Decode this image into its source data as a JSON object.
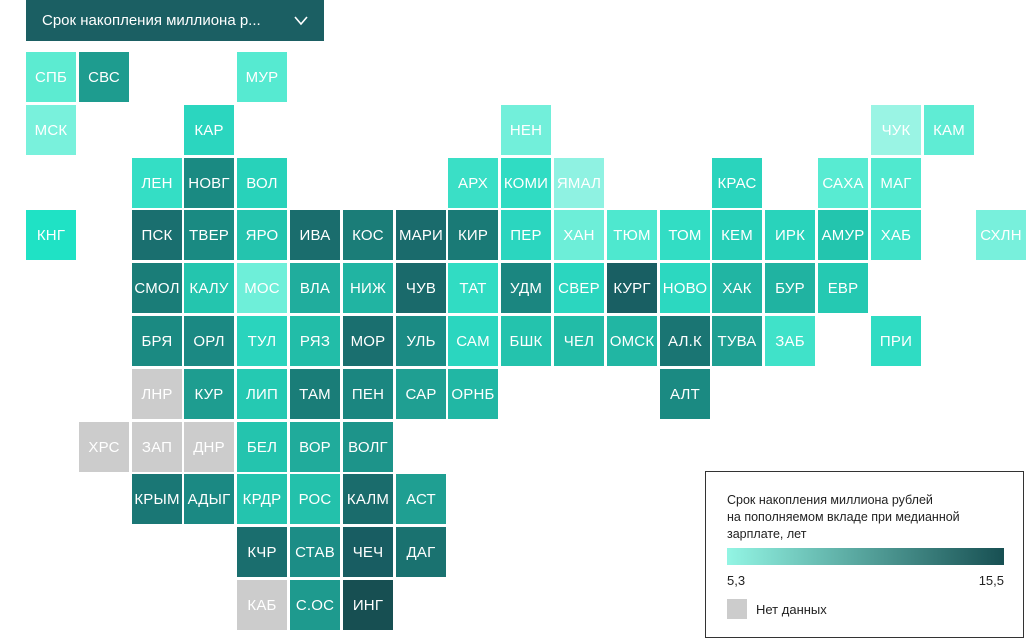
{
  "selector": {
    "label": "Срок накопления миллиона р..."
  },
  "legend": {
    "title_lines": [
      "Срок накопления миллиона рублей",
      "на пополняемом вкладе при медианной",
      "зарплате, лет"
    ],
    "min": "5,3",
    "max": "15,5",
    "no_data_label": "Нет данных",
    "color_min": "#93f5e4",
    "color_max": "#174f52",
    "no_data_color": "#cccccc"
  },
  "regions": [
    {
      "label": "СПБ",
      "col": 0,
      "row": 0,
      "color": "#5cebd1"
    },
    {
      "label": "СВС",
      "col": 1,
      "row": 0,
      "color": "#1e9c8f"
    },
    {
      "label": "МУР",
      "col": 4,
      "row": 0,
      "color": "#56ead1"
    },
    {
      "label": "МСК",
      "col": 0,
      "row": 1,
      "color": "#79f1dc"
    },
    {
      "label": "КАР",
      "col": 3,
      "row": 1,
      "color": "#2bd6bf"
    },
    {
      "label": "НЕН",
      "col": 9,
      "row": 1,
      "color": "#72efda"
    },
    {
      "label": "ЧУК",
      "col": 16,
      "row": 1,
      "color": "#9af4e4"
    },
    {
      "label": "КАМ",
      "col": 17,
      "row": 1,
      "color": "#5fecd4"
    },
    {
      "label": "ЛЕН",
      "col": 2,
      "row": 2,
      "color": "#34dec5"
    },
    {
      "label": "НОВГ",
      "col": 3,
      "row": 2,
      "color": "#1a8a82"
    },
    {
      "label": "ВОЛ",
      "col": 4,
      "row": 2,
      "color": "#28d2ba"
    },
    {
      "label": "АРХ",
      "col": 8,
      "row": 2,
      "color": "#3adfc6"
    },
    {
      "label": "КОМИ",
      "col": 9,
      "row": 2,
      "color": "#30dcc3"
    },
    {
      "label": "ЯМАЛ",
      "col": 10,
      "row": 2,
      "color": "#8ff2e2"
    },
    {
      "label": "КРАС",
      "col": 13,
      "row": 2,
      "color": "#2ad4bd"
    },
    {
      "label": "САХА",
      "col": 15,
      "row": 2,
      "color": "#58ebd2"
    },
    {
      "label": "МАГ",
      "col": 16,
      "row": 2,
      "color": "#50e9cf"
    },
    {
      "label": "КНГ",
      "col": 0,
      "row": 3,
      "color": "#1fe2c5"
    },
    {
      "label": "ПСК",
      "col": 2,
      "row": 3,
      "color": "#1a6f6f"
    },
    {
      "label": "ТВЕР",
      "col": 3,
      "row": 3,
      "color": "#1a8a82"
    },
    {
      "label": "ЯРО",
      "col": 4,
      "row": 3,
      "color": "#24c4ae"
    },
    {
      "label": "ИВА",
      "col": 5,
      "row": 3,
      "color": "#1a6d6d"
    },
    {
      "label": "КОС",
      "col": 6,
      "row": 3,
      "color": "#1b7d78"
    },
    {
      "label": "МАРИ",
      "col": 7,
      "row": 3,
      "color": "#1a6b6c"
    },
    {
      "label": "КИР",
      "col": 8,
      "row": 3,
      "color": "#1a7a76"
    },
    {
      "label": "ПЕР",
      "col": 9,
      "row": 3,
      "color": "#2bd6bf"
    },
    {
      "label": "ХАН",
      "col": 10,
      "row": 3,
      "color": "#6deed8"
    },
    {
      "label": "ТЮМ",
      "col": 11,
      "row": 3,
      "color": "#4ee8cf"
    },
    {
      "label": "ТОМ",
      "col": 12,
      "row": 3,
      "color": "#32ddc4"
    },
    {
      "label": "КЕМ",
      "col": 13,
      "row": 3,
      "color": "#27cfb8"
    },
    {
      "label": "ИРК",
      "col": 14,
      "row": 3,
      "color": "#29d3bb"
    },
    {
      "label": "АМУР",
      "col": 15,
      "row": 3,
      "color": "#23c5ae"
    },
    {
      "label": "ХАБ",
      "col": 16,
      "row": 3,
      "color": "#3ee1c8"
    },
    {
      "label": "СХЛН",
      "col": 18,
      "row": 3,
      "color": "#78f0dc"
    },
    {
      "label": "СМОЛ",
      "col": 2,
      "row": 4,
      "color": "#1a7d78"
    },
    {
      "label": "КАЛУ",
      "col": 3,
      "row": 4,
      "color": "#24c5ae"
    },
    {
      "label": "МОС",
      "col": 4,
      "row": 4,
      "color": "#6eefd9"
    },
    {
      "label": "ВЛА",
      "col": 5,
      "row": 4,
      "color": "#20ad9d"
    },
    {
      "label": "НИЖ",
      "col": 6,
      "row": 4,
      "color": "#21b4a2"
    },
    {
      "label": "ЧУВ",
      "col": 7,
      "row": 4,
      "color": "#1a6a6b"
    },
    {
      "label": "ТАТ",
      "col": 8,
      "row": 4,
      "color": "#31dcc3"
    },
    {
      "label": "УДМ",
      "col": 9,
      "row": 4,
      "color": "#1b8680"
    },
    {
      "label": "СВЕР",
      "col": 10,
      "row": 4,
      "color": "#2bd6bf"
    },
    {
      "label": "КУРГ",
      "col": 11,
      "row": 4,
      "color": "#195f63"
    },
    {
      "label": "НОВО",
      "col": 12,
      "row": 4,
      "color": "#2cd8c0"
    },
    {
      "label": "ХАК",
      "col": 13,
      "row": 4,
      "color": "#21b5a3"
    },
    {
      "label": "БУР",
      "col": 14,
      "row": 4,
      "color": "#20b3a1"
    },
    {
      "label": "ЕВР",
      "col": 15,
      "row": 4,
      "color": "#25c9b2"
    },
    {
      "label": "БРЯ",
      "col": 2,
      "row": 5,
      "color": "#1b8a82"
    },
    {
      "label": "ОРЛ",
      "col": 3,
      "row": 5,
      "color": "#1b8983"
    },
    {
      "label": "ТУЛ",
      "col": 4,
      "row": 5,
      "color": "#2ad4bd"
    },
    {
      "label": "РЯЗ",
      "col": 5,
      "row": 5,
      "color": "#22bda8"
    },
    {
      "label": "МОР",
      "col": 6,
      "row": 5,
      "color": "#1a6f6f"
    },
    {
      "label": "УЛЬ",
      "col": 7,
      "row": 5,
      "color": "#1b8b84"
    },
    {
      "label": "САМ",
      "col": 8,
      "row": 5,
      "color": "#2bd6bf"
    },
    {
      "label": "БШК",
      "col": 9,
      "row": 5,
      "color": "#24c3ad"
    },
    {
      "label": "ЧЕЛ",
      "col": 10,
      "row": 5,
      "color": "#22bca7"
    },
    {
      "label": "ОМСК",
      "col": 11,
      "row": 5,
      "color": "#21b6a3"
    },
    {
      "label": "АЛ.К",
      "col": 12,
      "row": 5,
      "color": "#1a7573"
    },
    {
      "label": "ТУВА",
      "col": 13,
      "row": 5,
      "color": "#1f9f92"
    },
    {
      "label": "ЗАБ",
      "col": 14,
      "row": 5,
      "color": "#40e2c9"
    },
    {
      "label": "ПРИ",
      "col": 16,
      "row": 5,
      "color": "#2fdcc3"
    },
    {
      "label": "ЛНР",
      "col": 2,
      "row": 6,
      "color": "#cccccc"
    },
    {
      "label": "КУР",
      "col": 3,
      "row": 6,
      "color": "#1e9d90"
    },
    {
      "label": "ЛИП",
      "col": 4,
      "row": 6,
      "color": "#25c9b2"
    },
    {
      "label": "ТАМ",
      "col": 5,
      "row": 6,
      "color": "#1a7d78"
    },
    {
      "label": "ПЕН",
      "col": 6,
      "row": 6,
      "color": "#1b8680"
    },
    {
      "label": "САР",
      "col": 7,
      "row": 6,
      "color": "#1f9f92"
    },
    {
      "label": "ОРНБ",
      "col": 8,
      "row": 6,
      "color": "#21b7a4"
    },
    {
      "label": "АЛТ",
      "col": 12,
      "row": 6,
      "color": "#1b8a82"
    },
    {
      "label": "ХРС",
      "col": 1,
      "row": 7,
      "color": "#cccccc"
    },
    {
      "label": "ЗАП",
      "col": 2,
      "row": 7,
      "color": "#cccccc"
    },
    {
      "label": "ДНР",
      "col": 3,
      "row": 7,
      "color": "#cccccc"
    },
    {
      "label": "БЕЛ",
      "col": 4,
      "row": 7,
      "color": "#24c4ae"
    },
    {
      "label": "ВОР",
      "col": 5,
      "row": 7,
      "color": "#20ab9b"
    },
    {
      "label": "ВОЛГ",
      "col": 6,
      "row": 7,
      "color": "#1d948a"
    },
    {
      "label": "КРЫМ",
      "col": 2,
      "row": 8,
      "color": "#1a7775"
    },
    {
      "label": "АДЫГ",
      "col": 3,
      "row": 8,
      "color": "#1b8983"
    },
    {
      "label": "КРДР",
      "col": 4,
      "row": 8,
      "color": "#24c4ae"
    },
    {
      "label": "РОС",
      "col": 5,
      "row": 8,
      "color": "#23c1ab"
    },
    {
      "label": "КАЛМ",
      "col": 6,
      "row": 8,
      "color": "#1a6c6c"
    },
    {
      "label": "АСТ",
      "col": 7,
      "row": 8,
      "color": "#1f9f92"
    },
    {
      "label": "КЧР",
      "col": 4,
      "row": 9,
      "color": "#1a6e6e"
    },
    {
      "label": "СТАВ",
      "col": 5,
      "row": 9,
      "color": "#1c8d86"
    },
    {
      "label": "ЧЕЧ",
      "col": 6,
      "row": 9,
      "color": "#185d62"
    },
    {
      "label": "ДАГ",
      "col": 7,
      "row": 9,
      "color": "#1a7270"
    },
    {
      "label": "КАБ",
      "col": 4,
      "row": 10,
      "color": "#cccccc"
    },
    {
      "label": "С.ОС",
      "col": 5,
      "row": 10,
      "color": "#1e9a8e"
    },
    {
      "label": "ИНГ",
      "col": 6,
      "row": 10,
      "color": "#174f52"
    }
  ]
}
